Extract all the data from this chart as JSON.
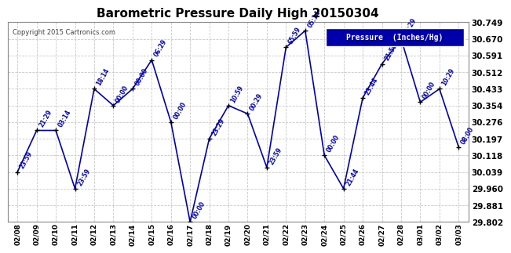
{
  "title": "Barometric Pressure Daily High 20150304",
  "copyright": "Copyright 2015 Cartronics.com",
  "legend_label": "Pressure  (Inches/Hg)",
  "dates": [
    "02/08",
    "02/09",
    "02/10",
    "02/11",
    "02/12",
    "02/13",
    "02/14",
    "02/15",
    "02/16",
    "02/17",
    "02/18",
    "02/19",
    "02/20",
    "02/21",
    "02/22",
    "02/23",
    "02/24",
    "02/25",
    "02/26",
    "02/27",
    "02/28",
    "03/01",
    "03/02",
    "03/03"
  ],
  "values": [
    30.039,
    30.236,
    30.236,
    29.96,
    30.433,
    30.354,
    30.433,
    30.57,
    30.276,
    29.802,
    30.197,
    30.354,
    30.315,
    30.06,
    30.63,
    30.709,
    30.118,
    29.96,
    30.39,
    30.551,
    30.67,
    30.37,
    30.433,
    30.157
  ],
  "time_labels": [
    "23:59",
    "21:29",
    "03:14",
    "23:59",
    "18:14",
    "00:00",
    "00:00",
    "06:29",
    "00:00",
    "00:00",
    "23:29",
    "10:59",
    "00:29",
    "23:59",
    "65:59",
    "05:14",
    "00:00",
    "21:44",
    "23:44",
    "21:59",
    "08:29",
    "00:00",
    "10:29",
    "08:00"
  ],
  "ylim_min": 29.802,
  "ylim_max": 30.749,
  "yticks": [
    29.802,
    29.881,
    29.96,
    30.039,
    30.118,
    30.197,
    30.276,
    30.354,
    30.433,
    30.512,
    30.591,
    30.67,
    30.749
  ],
  "line_color": "#0000BB",
  "marker_color": "#000000",
  "plot_bg_color": "#FFFFFF",
  "fig_bg_color": "#FFFFFF",
  "grid_color": "#BBBBBB",
  "title_color": "#000000",
  "label_color": "#0000BB",
  "legend_bg": "#0000AA",
  "legend_text_color": "#FFFFFF",
  "copyright_color": "#444444"
}
